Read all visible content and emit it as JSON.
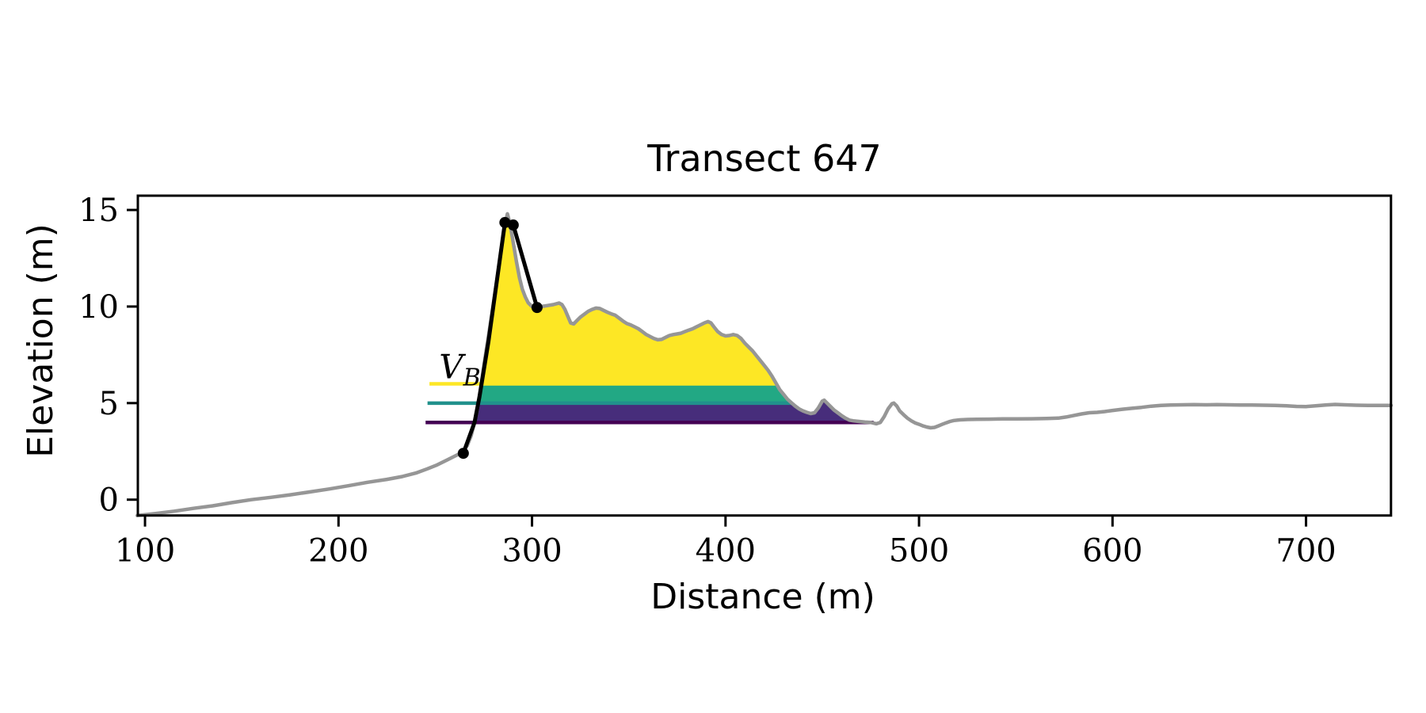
{
  "figure": {
    "background": "#ffffff"
  },
  "chart_data": {
    "type": "line",
    "title": "Transect 647",
    "xlabel": "Distance (m)",
    "ylabel": "Elevation (m)",
    "xlim": [
      96.3,
      743.9
    ],
    "ylim": [
      -0.82,
      15.74
    ],
    "x_ticks": [
      100,
      200,
      300,
      400,
      500,
      600,
      700
    ],
    "y_ticks": [
      0,
      5,
      10,
      15
    ],
    "grid": false,
    "legend": "none",
    "colors": {
      "profile_gray": "#969696",
      "crest_black": "#000000",
      "fill_yellow": "#FDE725",
      "fill_teal": "#22A884",
      "fill_purple": "#472D7B",
      "line_yellow": "#FDE725",
      "line_teal": "#21918C",
      "line_purple": "#440154"
    },
    "profile": {
      "name": "terrain-profile",
      "points": [
        [
          96,
          -0.82
        ],
        [
          105,
          -0.72
        ],
        [
          115,
          -0.6
        ],
        [
          125,
          -0.45
        ],
        [
          135,
          -0.32
        ],
        [
          145,
          -0.15
        ],
        [
          155,
          0.0
        ],
        [
          165,
          0.12
        ],
        [
          175,
          0.25
        ],
        [
          185,
          0.4
        ],
        [
          195,
          0.55
        ],
        [
          205,
          0.72
        ],
        [
          215,
          0.9
        ],
        [
          225,
          1.05
        ],
        [
          233,
          1.2
        ],
        [
          240,
          1.38
        ],
        [
          246,
          1.6
        ],
        [
          251,
          1.8
        ],
        [
          256,
          2.05
        ],
        [
          260,
          2.25
        ],
        [
          264,
          2.45
        ],
        [
          266.5,
          2.8
        ],
        [
          268.5,
          3.3
        ],
        [
          270.3,
          4.0
        ],
        [
          271.6,
          4.6
        ],
        [
          272.8,
          5.3
        ],
        [
          273.8,
          6.0
        ],
        [
          275.2,
          7.0
        ],
        [
          276.6,
          7.9
        ],
        [
          278,
          8.8
        ],
        [
          279.5,
          9.8
        ],
        [
          281,
          10.8
        ],
        [
          282.5,
          11.8
        ],
        [
          284,
          12.9
        ],
        [
          285.3,
          13.8
        ],
        [
          286.3,
          14.35
        ],
        [
          287.3,
          14.8
        ],
        [
          288.3,
          14.4
        ],
        [
          289.3,
          13.9
        ],
        [
          290.5,
          13.2
        ],
        [
          292,
          12.3
        ],
        [
          293.5,
          11.5
        ],
        [
          295,
          10.9
        ],
        [
          296.5,
          10.5
        ],
        [
          298,
          10.2
        ],
        [
          300,
          10.0
        ],
        [
          302.5,
          9.95
        ],
        [
          305,
          10.0
        ],
        [
          308,
          10.05
        ],
        [
          311,
          10.1
        ],
        [
          314,
          10.18
        ],
        [
          315.5,
          10.1
        ],
        [
          317,
          9.85
        ],
        [
          318.5,
          9.5
        ],
        [
          320,
          9.15
        ],
        [
          321.5,
          9.1
        ],
        [
          323,
          9.25
        ],
        [
          325,
          9.45
        ],
        [
          327,
          9.6
        ],
        [
          329,
          9.75
        ],
        [
          331,
          9.85
        ],
        [
          333,
          9.92
        ],
        [
          335,
          9.9
        ],
        [
          337,
          9.8
        ],
        [
          339,
          9.7
        ],
        [
          341,
          9.62
        ],
        [
          343,
          9.55
        ],
        [
          345,
          9.4
        ],
        [
          347,
          9.25
        ],
        [
          349,
          9.12
        ],
        [
          351,
          9.05
        ],
        [
          353,
          8.95
        ],
        [
          355,
          8.85
        ],
        [
          357,
          8.7
        ],
        [
          359,
          8.55
        ],
        [
          361,
          8.45
        ],
        [
          363,
          8.35
        ],
        [
          365,
          8.28
        ],
        [
          367,
          8.3
        ],
        [
          369,
          8.4
        ],
        [
          371,
          8.5
        ],
        [
          373,
          8.55
        ],
        [
          375,
          8.58
        ],
        [
          377,
          8.62
        ],
        [
          379,
          8.7
        ],
        [
          381,
          8.78
        ],
        [
          383,
          8.85
        ],
        [
          385,
          8.95
        ],
        [
          387,
          9.05
        ],
        [
          389,
          9.15
        ],
        [
          391,
          9.22
        ],
        [
          392.5,
          9.15
        ],
        [
          394,
          8.95
        ],
        [
          396,
          8.7
        ],
        [
          398,
          8.55
        ],
        [
          400,
          8.48
        ],
        [
          402,
          8.5
        ],
        [
          404,
          8.55
        ],
        [
          406,
          8.5
        ],
        [
          408,
          8.35
        ],
        [
          410,
          8.1
        ],
        [
          412,
          7.9
        ],
        [
          414,
          7.7
        ],
        [
          416,
          7.45
        ],
        [
          418,
          7.2
        ],
        [
          420,
          6.95
        ],
        [
          422,
          6.7
        ],
        [
          424,
          6.4
        ],
        [
          426,
          6.05
        ],
        [
          428,
          5.7
        ],
        [
          430,
          5.45
        ],
        [
          432,
          5.2
        ],
        [
          434,
          5.02
        ],
        [
          436,
          4.85
        ],
        [
          438,
          4.7
        ],
        [
          440,
          4.6
        ],
        [
          442,
          4.52
        ],
        [
          444,
          4.46
        ],
        [
          446,
          4.5
        ],
        [
          448,
          4.75
        ],
        [
          450,
          5.1
        ],
        [
          451,
          5.15
        ],
        [
          452.5,
          5.0
        ],
        [
          454,
          4.85
        ],
        [
          456,
          4.65
        ],
        [
          458,
          4.5
        ],
        [
          460,
          4.35
        ],
        [
          462,
          4.22
        ],
        [
          464,
          4.12
        ],
        [
          466,
          4.08
        ],
        [
          469,
          4.05
        ],
        [
          472,
          4.02
        ],
        [
          475,
          4.0
        ],
        [
          478,
          3.93
        ],
        [
          480,
          4.0
        ],
        [
          482,
          4.3
        ],
        [
          484,
          4.7
        ],
        [
          486,
          4.97
        ],
        [
          487,
          5.0
        ],
        [
          488.5,
          4.85
        ],
        [
          490,
          4.6
        ],
        [
          492,
          4.4
        ],
        [
          494,
          4.22
        ],
        [
          496,
          4.08
        ],
        [
          498,
          3.97
        ],
        [
          500,
          3.9
        ],
        [
          502,
          3.82
        ],
        [
          504,
          3.76
        ],
        [
          506,
          3.72
        ],
        [
          508,
          3.74
        ],
        [
          510,
          3.82
        ],
        [
          512,
          3.9
        ],
        [
          514,
          3.98
        ],
        [
          516,
          4.05
        ],
        [
          518,
          4.1
        ],
        [
          521,
          4.13
        ],
        [
          525,
          4.15
        ],
        [
          530,
          4.16
        ],
        [
          536,
          4.17
        ],
        [
          543,
          4.18
        ],
        [
          550,
          4.18
        ],
        [
          558,
          4.19
        ],
        [
          566,
          4.2
        ],
        [
          572,
          4.22
        ],
        [
          576,
          4.28
        ],
        [
          580,
          4.36
        ],
        [
          584,
          4.44
        ],
        [
          588,
          4.5
        ],
        [
          592,
          4.52
        ],
        [
          596,
          4.56
        ],
        [
          600,
          4.62
        ],
        [
          605,
          4.68
        ],
        [
          610,
          4.73
        ],
        [
          615,
          4.78
        ],
        [
          620,
          4.84
        ],
        [
          625,
          4.88
        ],
        [
          630,
          4.9
        ],
        [
          636,
          4.91
        ],
        [
          642,
          4.92
        ],
        [
          648,
          4.91
        ],
        [
          654,
          4.92
        ],
        [
          660,
          4.91
        ],
        [
          666,
          4.9
        ],
        [
          672,
          4.9
        ],
        [
          678,
          4.89
        ],
        [
          684,
          4.88
        ],
        [
          690,
          4.86
        ],
        [
          695,
          4.83
        ],
        [
          700,
          4.82
        ],
        [
          705,
          4.86
        ],
        [
          710,
          4.9
        ],
        [
          715,
          4.93
        ],
        [
          720,
          4.91
        ],
        [
          726,
          4.89
        ],
        [
          732,
          4.88
        ],
        [
          738,
          4.88
        ],
        [
          744,
          4.88
        ]
      ]
    },
    "crest_line": {
      "name": "dune-crest-line",
      "points": [
        [
          264.5,
          2.4
        ],
        [
          270.3,
          4.0
        ],
        [
          272.8,
          5.3
        ],
        [
          277.5,
          8.2
        ],
        [
          286.0,
          14.35
        ],
        [
          290.3,
          14.22
        ],
        [
          302.6,
          9.95
        ]
      ],
      "markers": [
        [
          264.5,
          2.4
        ],
        [
          286.0,
          14.35
        ],
        [
          290.3,
          14.22
        ],
        [
          302.6,
          9.95
        ]
      ]
    },
    "bands": [
      {
        "name": "volume-band-purple",
        "lo": 4,
        "hi": null,
        "x0": 270.3,
        "x1": 476.5,
        "color": "#472D7B"
      },
      {
        "name": "volume-band-teal",
        "lo": 5,
        "hi": 6,
        "x0": 272.3,
        "x1": 434.2,
        "color": "#22A884"
      },
      {
        "name": "volume-band-yellow",
        "lo": 6,
        "hi": null,
        "x0": 273.8,
        "x1": 426.3,
        "color": "#FDE725"
      }
    ],
    "level_lines": [
      {
        "name": "level-line-6m",
        "y": 6,
        "x0": 247,
        "x1": 426.3,
        "color": "#FDE725"
      },
      {
        "name": "level-line-5m",
        "y": 5,
        "x0": 246,
        "x1": 434.2,
        "color": "#21918C"
      },
      {
        "name": "level-line-4m",
        "y": 4,
        "x0": 245,
        "x1": 476.5,
        "color": "#440154"
      }
    ],
    "annotation": {
      "text": "V",
      "sub": "B",
      "x": 252,
      "y": 6.28
    }
  }
}
